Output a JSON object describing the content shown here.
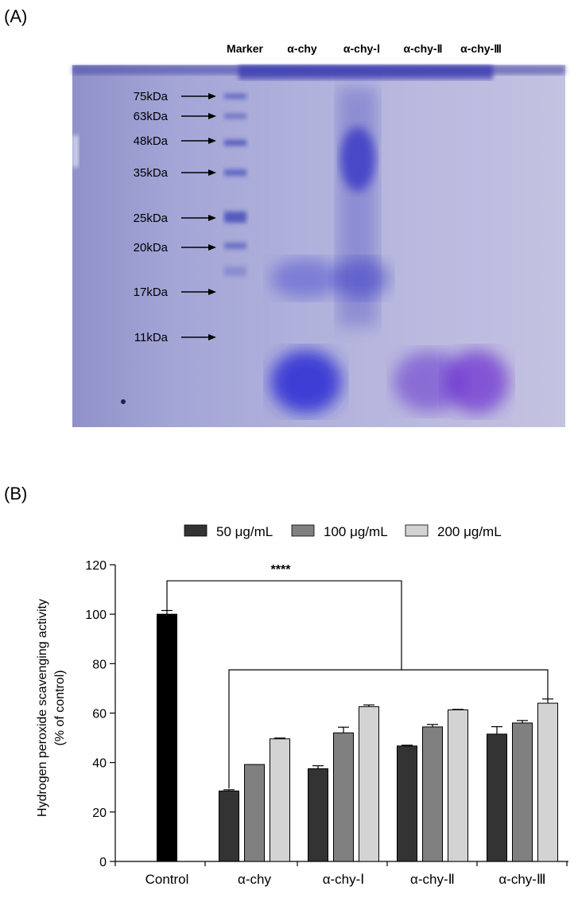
{
  "panels": {
    "a_label": "(A)",
    "b_label": "(B)"
  },
  "gel": {
    "lanes": [
      "Marker",
      "α-chy",
      "α-chy-Ⅰ",
      "α-chy-Ⅱ",
      "α-chy-Ⅲ"
    ],
    "markers": [
      "75kDa",
      "63kDa",
      "48kDa",
      "35kDa",
      "25kDa",
      "20kDa",
      "17kDa",
      "11kDa"
    ],
    "colors": {
      "background": "#a7a9d6",
      "band": "#3a3ad0"
    }
  },
  "chart_data": {
    "type": "bar",
    "ylabel": [
      "Hydrogen peroxide scavenging activity",
      "(% of control)"
    ],
    "ylim": [
      0,
      120
    ],
    "yticks": [
      0,
      20,
      40,
      60,
      80,
      100,
      120
    ],
    "categories": [
      "Control",
      "α-chy",
      "α-chy-Ⅰ",
      "α-chy-Ⅱ",
      "α-chy-Ⅲ"
    ],
    "control": {
      "value": 100,
      "error": 1.5,
      "color": "#000000"
    },
    "series": [
      {
        "name": "50 μg/mL",
        "color": "#333333",
        "values": [
          null,
          28.5,
          37.5,
          46.7,
          51.5
        ],
        "errors": [
          null,
          0.5,
          1.2,
          0.3,
          3.0
        ]
      },
      {
        "name": "100 μg/mL",
        "color": "#808080",
        "values": [
          null,
          39.2,
          52.0,
          54.4,
          56.0
        ],
        "errors": [
          null,
          0.0,
          2.3,
          1.0,
          1.0
        ]
      },
      {
        "name": "200 μg/mL",
        "color": "#d3d3d3",
        "values": [
          null,
          49.6,
          62.6,
          61.3,
          64.0
        ],
        "errors": [
          null,
          0.3,
          0.7,
          0.2,
          1.7
        ]
      }
    ],
    "significance": "****",
    "legend_position": "top"
  }
}
